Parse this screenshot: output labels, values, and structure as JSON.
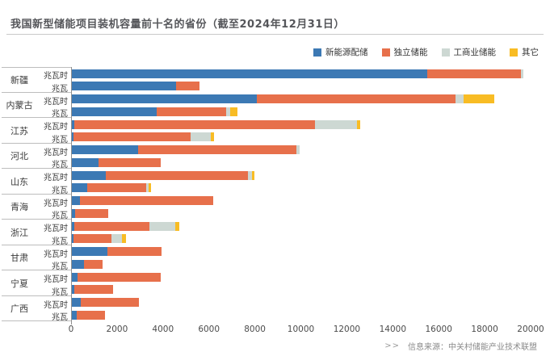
{
  "title": "我国新型储能项目装机容量前十名的省份（截至2024年12月31日）",
  "source": {
    "arrow": ">>",
    "text": "信息来源：中关村储能产业技术联盟"
  },
  "row_unit_labels": {
    "mwh": "兆瓦时",
    "mw": "兆瓦"
  },
  "chart_data": {
    "type": "bar",
    "orientation": "horizontal",
    "stacked": true,
    "title": "我国新型储能项目装机容量前十名的省份（截至2024年12月31日）",
    "xlabel": "",
    "ylabel": "",
    "xlim": [
      0,
      20000
    ],
    "xticks": [
      0,
      2000,
      4000,
      6000,
      8000,
      10000,
      12000,
      14000,
      16000,
      18000,
      20000
    ],
    "grid": false,
    "legend_position": "top-right",
    "series": [
      {
        "name": "新能源配储",
        "color": "#3c79b4"
      },
      {
        "name": "独立储能",
        "color": "#e7704b"
      },
      {
        "name": "工商业储能",
        "color": "#cdd8d3"
      },
      {
        "name": "其它",
        "color": "#f8bc24"
      }
    ],
    "unit_rows": [
      "兆瓦时",
      "兆瓦"
    ],
    "provinces": [
      {
        "name": "新疆",
        "mwh": [
          15450,
          4100,
          100,
          0
        ],
        "mw": [
          4550,
          1000,
          0,
          0
        ]
      },
      {
        "name": "内蒙古",
        "mwh": [
          8050,
          8650,
          350,
          1350
        ],
        "mw": [
          3700,
          3000,
          200,
          300
        ]
      },
      {
        "name": "江苏",
        "mwh": [
          120,
          10450,
          1850,
          130
        ],
        "mw": [
          80,
          5100,
          850,
          150
        ]
      },
      {
        "name": "河北",
        "mwh": [
          2870,
          6900,
          130,
          0
        ],
        "mw": [
          1170,
          2700,
          0,
          0
        ]
      },
      {
        "name": "山东",
        "mwh": [
          1480,
          6200,
          160,
          110
        ],
        "mw": [
          670,
          2570,
          90,
          100
        ]
      },
      {
        "name": "青海",
        "mwh": [
          350,
          5800,
          0,
          0
        ],
        "mw": [
          150,
          1440,
          0,
          0
        ]
      },
      {
        "name": "浙江",
        "mwh": [
          100,
          3280,
          1120,
          170
        ],
        "mw": [
          80,
          1650,
          450,
          180
        ]
      },
      {
        "name": "甘肃",
        "mwh": [
          1550,
          2350,
          0,
          0
        ],
        "mw": [
          530,
          810,
          0,
          0
        ]
      },
      {
        "name": "宁夏",
        "mwh": [
          260,
          3610,
          0,
          0
        ],
        "mw": [
          120,
          1660,
          0,
          0
        ]
      },
      {
        "name": "广西",
        "mwh": [
          390,
          2510,
          0,
          0
        ],
        "mw": [
          220,
          1220,
          0,
          0
        ]
      }
    ]
  }
}
